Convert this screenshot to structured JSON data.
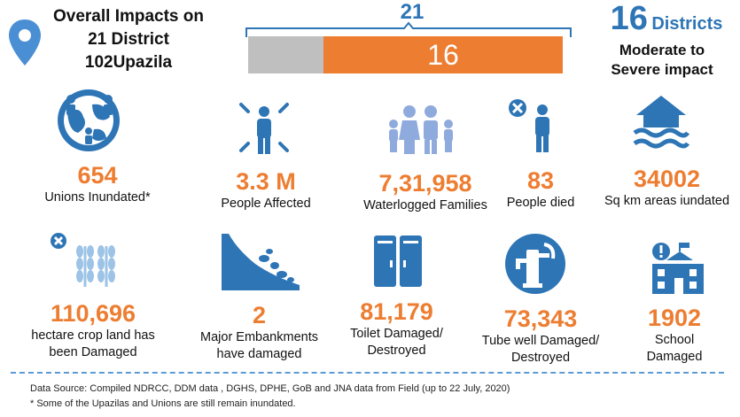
{
  "header": {
    "title_lines": [
      "Overall Impacts on",
      "21 District",
      "102Upazila"
    ],
    "icon": "location-pin-icon"
  },
  "progress": {
    "total_label": "21",
    "affected_label": "16",
    "total": 21,
    "affected": 16,
    "colors": {
      "affected": "#ed7d31",
      "rest": "#bfbfbf",
      "accent": "#2e75b6"
    }
  },
  "districts": {
    "number": "16",
    "word": "Districts",
    "sub_lines": [
      "Moderate to",
      "Severe impact"
    ]
  },
  "stats_row1": [
    {
      "value": "654",
      "label_lines": [
        "Unions Inundated*"
      ],
      "icon": "globe-people-icon"
    },
    {
      "value": "3.3 M",
      "label_lines": [
        "People Affected"
      ],
      "icon": "person-radiating-icon"
    },
    {
      "value": "7,31,958",
      "label_lines": [
        "Waterlogged Families"
      ],
      "icon": "family-icon"
    },
    {
      "value": "83",
      "label_lines": [
        "People died"
      ],
      "icon": "person-died-icon"
    },
    {
      "value": "34002",
      "label_lines": [
        "Sq km areas iundated"
      ],
      "icon": "flooded-house-icon"
    }
  ],
  "stats_row2": [
    {
      "value": "110,696",
      "label_lines": [
        "hectare crop land has",
        "been Damaged"
      ],
      "icon": "crop-damage-icon"
    },
    {
      "value": "2",
      "label_lines": [
        "Major Embankments",
        "have damaged"
      ],
      "icon": "landslide-icon"
    },
    {
      "value": "81,179",
      "label_lines": [
        "Toilet Damaged/",
        "Destroyed"
      ],
      "icon": "toilet-icon"
    },
    {
      "value": "73,343",
      "label_lines": [
        "Tube well Damaged/",
        "Destroyed"
      ],
      "icon": "tube-well-icon"
    },
    {
      "value": "1902",
      "label_lines": [
        "School",
        "Damaged"
      ],
      "icon": "school-damage-icon"
    }
  ],
  "footer": {
    "source": "Data Source: Compiled NDRCC, DDM data , DGHS, DPHE, GoB and JNA data from Field (up to 22  July, 2020)",
    "note": "* Some of the Upazilas and Unions are still remain inundated."
  }
}
